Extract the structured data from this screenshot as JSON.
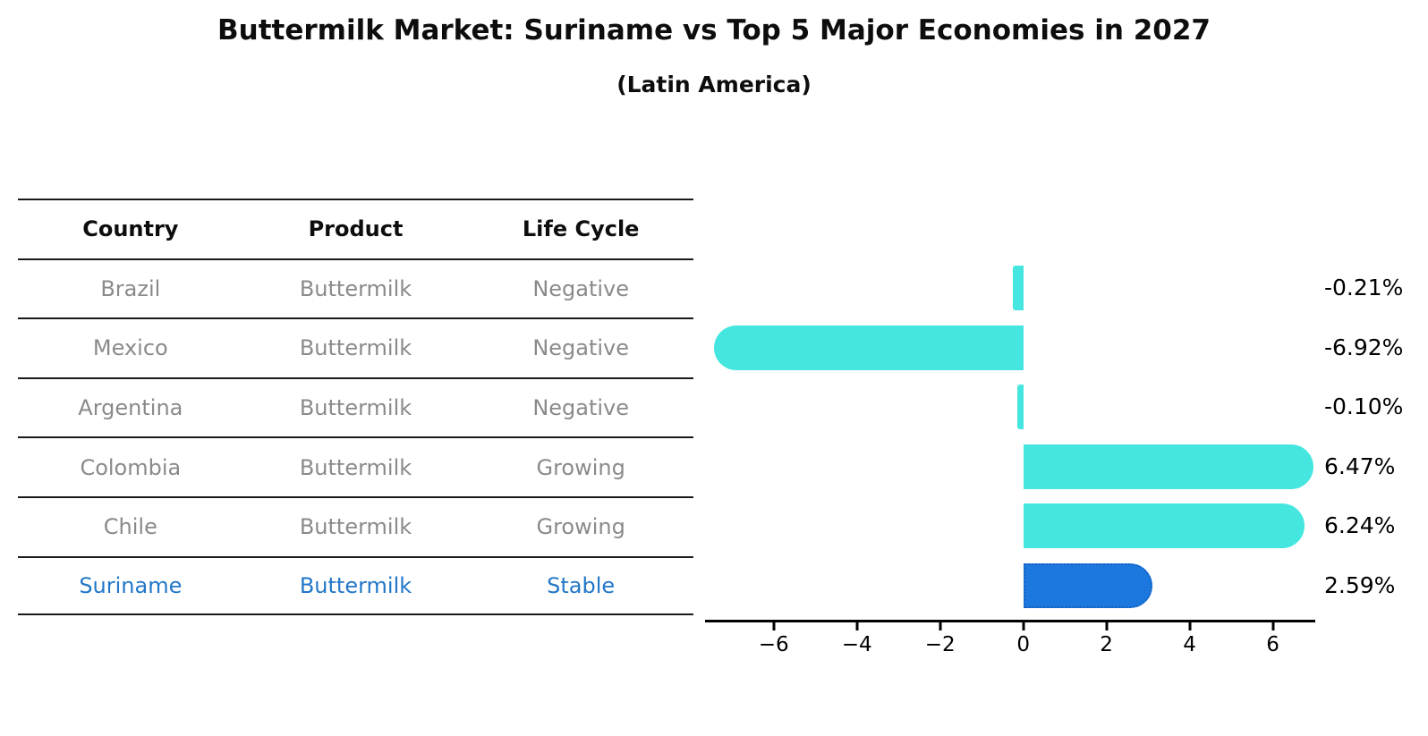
{
  "title": "Buttermilk Market: Suriname vs Top 5 Major Economies in 2027",
  "subtitle": "(Latin America)",
  "table": {
    "headers": [
      "Country",
      "Product",
      "Life Cycle"
    ],
    "rows": [
      {
        "country": "Brazil",
        "product": "Buttermilk",
        "life_cycle": "Negative",
        "highlight": false
      },
      {
        "country": "Mexico",
        "product": "Buttermilk",
        "life_cycle": "Negative",
        "highlight": false
      },
      {
        "country": "Argentina",
        "product": "Buttermilk",
        "life_cycle": "Negative",
        "highlight": false
      },
      {
        "country": "Colombia",
        "product": "Buttermilk",
        "life_cycle": "Growing",
        "highlight": false
      },
      {
        "country": "Chile",
        "product": "Buttermilk",
        "life_cycle": "Growing",
        "highlight": false
      },
      {
        "country": "Suriname",
        "product": "Buttermilk",
        "life_cycle": "Stable",
        "highlight": true
      }
    ]
  },
  "chart_data": {
    "type": "bar",
    "orientation": "horizontal",
    "title": "Buttermilk Market: Suriname vs Top 5 Major Economies in 2027",
    "subtitle": "(Latin America)",
    "categories": [
      "Brazil",
      "Mexico",
      "Argentina",
      "Colombia",
      "Chile",
      "Suriname"
    ],
    "values": [
      -0.21,
      -6.92,
      -0.1,
      6.47,
      6.24,
      2.59
    ],
    "value_labels": [
      "-0.21%",
      "-6.92%",
      "-0.10%",
      "6.47%",
      "6.24%",
      "2.59%"
    ],
    "xticks": [
      -6,
      -4,
      -2,
      0,
      2,
      4,
      6
    ],
    "xtick_labels": [
      "−6",
      "−4",
      "−2",
      "0",
      "2",
      "4",
      "6"
    ],
    "xlim": [
      -7.65,
      7.02
    ],
    "grid": false,
    "legend": null,
    "highlight_index": 5
  },
  "colors": {
    "bar_default": "#45e6e0",
    "bar_highlight": "#1c78df",
    "bar_highlight_border": "#1560c0",
    "table_text": "#8a8a8a",
    "highlight_text": "#2277c8",
    "axis": "#000000"
  }
}
